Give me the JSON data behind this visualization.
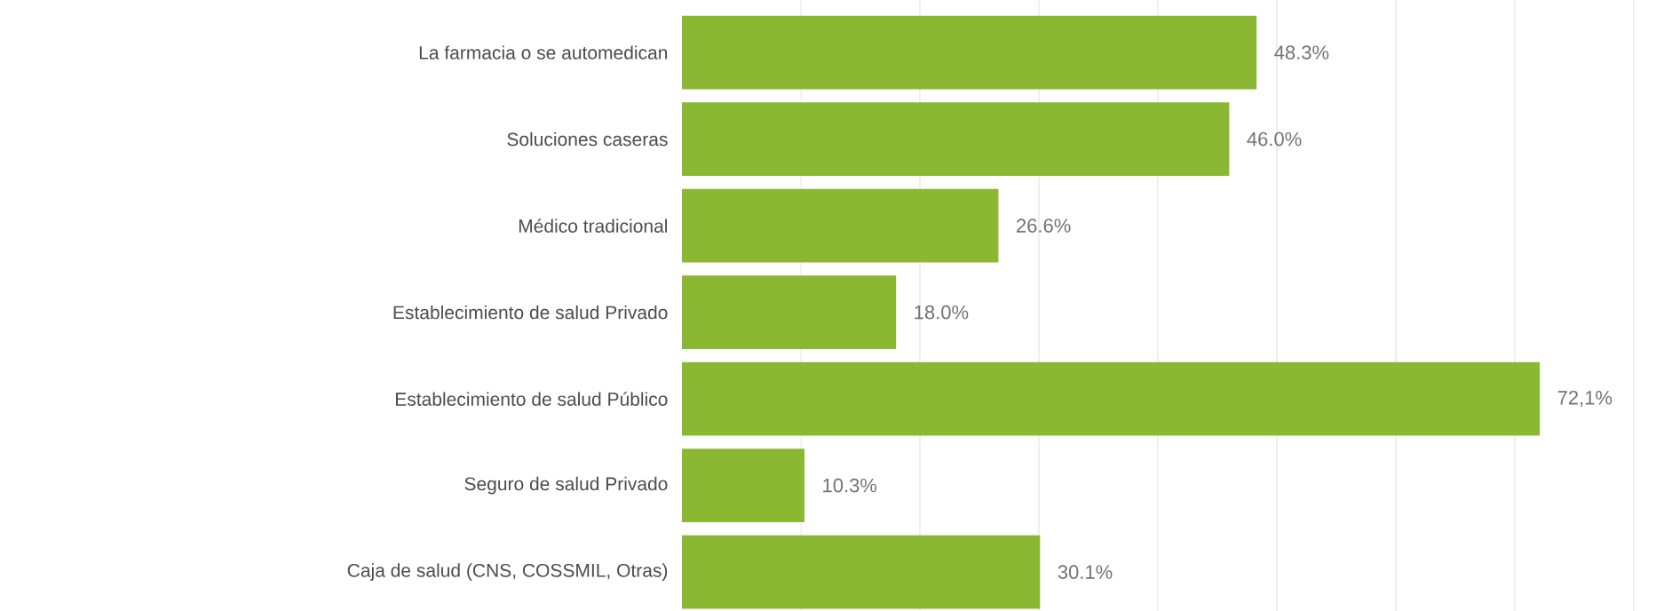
{
  "chart_data": {
    "type": "bar",
    "orientation": "horizontal",
    "categories": [
      "La farmacia o se automedican",
      "Soluciones caseras",
      "Médico tradicional",
      "Establecimiento de salud Privado",
      "Establecimiento de salud Público",
      "Seguro de salud Privado",
      "Caja de salud (CNS, COSSMIL, Otras)"
    ],
    "values": [
      48.3,
      46.0,
      26.6,
      18.0,
      72.1,
      10.3,
      30.1
    ],
    "value_labels": [
      "48.3%",
      "46.0%",
      "26.6%",
      "18.0%",
      "72,1%",
      "10.3%",
      "30.1%"
    ],
    "color": "#8ab833",
    "xticks": [
      {
        "value": 10,
        "label": null
      },
      {
        "value": 20,
        "label": null
      },
      {
        "value": 30,
        "label": null
      },
      {
        "value": 40,
        "label": null
      },
      {
        "value": 50,
        "label": null
      },
      {
        "value": 60,
        "label": null
      },
      {
        "value": 70,
        "label": null
      },
      {
        "value": 80,
        "label": null
      }
    ],
    "tick_labels": "y",
    "grid": "x"
  }
}
